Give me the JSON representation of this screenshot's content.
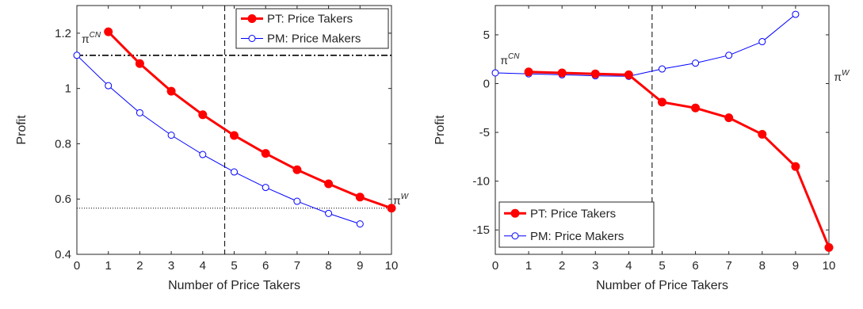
{
  "chart_data": [
    {
      "type": "line",
      "xlabel": "Number of Price Takers",
      "ylabel": "Profit",
      "xlim": [
        0,
        10
      ],
      "ylim": [
        0.4,
        1.3
      ],
      "xticks": [
        0,
        1,
        2,
        3,
        4,
        5,
        6,
        7,
        8,
        9,
        10
      ],
      "yticks": [
        0.4,
        0.6,
        0.8,
        1,
        1.2
      ],
      "ytick_labels": [
        "0.4",
        "0.6",
        "0.8",
        "1",
        "1.2"
      ],
      "legend_position": "top-right",
      "grid": false,
      "series": [
        {
          "name": "PT: Price Takers",
          "color": "#ff0000",
          "marker": "filled-circle",
          "x": [
            1,
            2,
            3,
            4,
            5,
            6,
            7,
            8,
            9,
            10
          ],
          "y": [
            1.205,
            1.09,
            0.99,
            0.905,
            0.83,
            0.765,
            0.706,
            0.655,
            0.607,
            0.567
          ]
        },
        {
          "name": "PM: Price Makers",
          "color": "#0000ff",
          "marker": "open-circle",
          "x": [
            0,
            1,
            2,
            3,
            4,
            5,
            6,
            7,
            8,
            9
          ],
          "y": [
            1.12,
            1.01,
            0.912,
            0.831,
            0.761,
            0.698,
            0.642,
            0.592,
            0.548,
            0.51
          ]
        }
      ],
      "reference_lines": [
        {
          "type": "horizontal",
          "y": 1.12,
          "style": "dash-dot",
          "color": "#000000"
        },
        {
          "type": "horizontal",
          "y": 0.567,
          "style": "dotted",
          "color": "#000000"
        },
        {
          "type": "vertical",
          "x": 4.7,
          "style": "dashed",
          "color": "#000000"
        }
      ],
      "annotations": [
        {
          "base": "π",
          "sup": "CN",
          "x": 0.15,
          "y": 1.165
        },
        {
          "base": "π",
          "sup": "W",
          "x": 10.05,
          "y": 0.58
        }
      ]
    },
    {
      "type": "line",
      "xlabel": "Number of Price Takers",
      "ylabel": "Profit",
      "xlim": [
        0,
        10
      ],
      "ylim": [
        -17.5,
        8
      ],
      "xticks": [
        0,
        1,
        2,
        3,
        4,
        5,
        6,
        7,
        8,
        9,
        10
      ],
      "yticks": [
        -15,
        -10,
        -5,
        0,
        5
      ],
      "ytick_labels": [
        "-15",
        "-10",
        "-5",
        "0",
        "5"
      ],
      "legend_position": "bottom-left",
      "grid": false,
      "series": [
        {
          "name": "PT: Price Takers",
          "color": "#ff0000",
          "marker": "filled-circle",
          "x": [
            1,
            2,
            3,
            4,
            5,
            6,
            7,
            8,
            9,
            10
          ],
          "y": [
            1.2,
            1.1,
            1.0,
            0.9,
            -1.9,
            -2.5,
            -3.5,
            -5.2,
            -8.5,
            -16.8
          ]
        },
        {
          "name": "PM: Price Makers",
          "color": "#0000ff",
          "marker": "open-circle",
          "x": [
            0,
            1,
            2,
            3,
            4,
            5,
            6,
            7,
            8,
            9
          ],
          "y": [
            1.1,
            1.0,
            0.9,
            0.8,
            0.75,
            1.5,
            2.1,
            2.9,
            4.3,
            7.1
          ]
        }
      ],
      "reference_lines": [
        {
          "type": "vertical",
          "x": 4.7,
          "style": "dashed",
          "color": "#000000"
        }
      ],
      "annotations": [
        {
          "base": "π",
          "sup": "CN",
          "x": 0.15,
          "y": 2.0
        },
        {
          "base": "π",
          "sup": "W",
          "x": 10.15,
          "y": 0.3
        }
      ]
    }
  ]
}
